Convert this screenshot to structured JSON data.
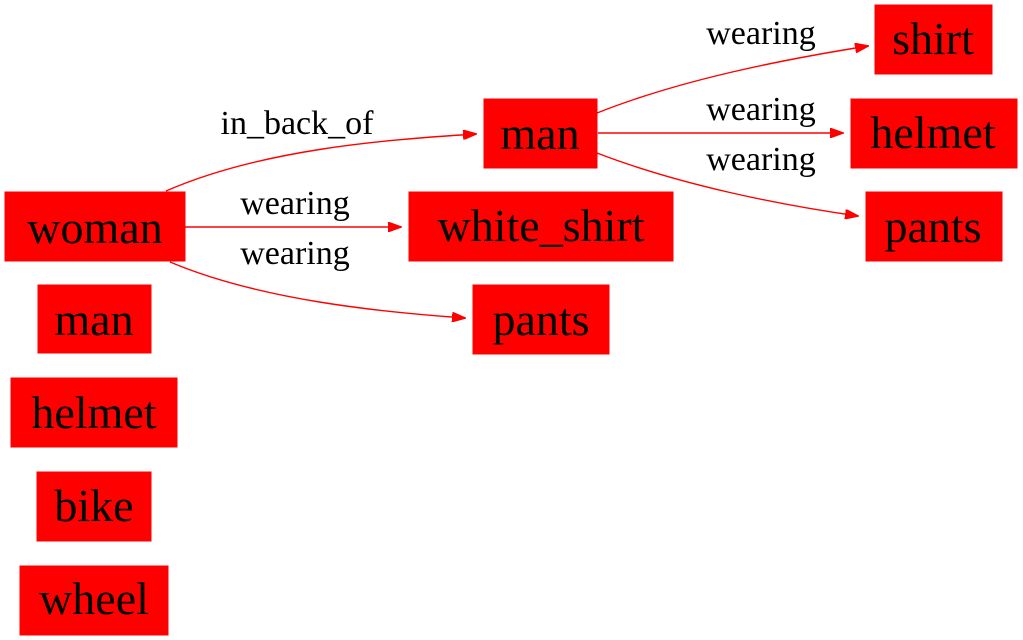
{
  "graph": {
    "node_color": "#ff0000",
    "edge_color": "#ff0000",
    "text_color": "#000000",
    "nodes": [
      {
        "id": "woman",
        "label": "woman"
      },
      {
        "id": "man_iso",
        "label": "man"
      },
      {
        "id": "helmet_iso",
        "label": "helmet"
      },
      {
        "id": "bike",
        "label": "bike"
      },
      {
        "id": "wheel",
        "label": "wheel"
      },
      {
        "id": "man_main",
        "label": "man"
      },
      {
        "id": "white_shirt",
        "label": "white_shirt"
      },
      {
        "id": "pants_w",
        "label": "pants"
      },
      {
        "id": "shirt",
        "label": "shirt"
      },
      {
        "id": "helmet_m",
        "label": "helmet"
      },
      {
        "id": "pants_m",
        "label": "pants"
      }
    ],
    "edges": [
      {
        "id": "e1",
        "from": "woman",
        "to": "man_main",
        "label": "in_back_of"
      },
      {
        "id": "e2",
        "from": "woman",
        "to": "white_shirt",
        "label": "wearing"
      },
      {
        "id": "e3",
        "from": "woman",
        "to": "pants_w",
        "label": "wearing"
      },
      {
        "id": "e4",
        "from": "man_main",
        "to": "shirt",
        "label": "wearing"
      },
      {
        "id": "e5",
        "from": "man_main",
        "to": "helmet_m",
        "label": "wearing"
      },
      {
        "id": "e6",
        "from": "man_main",
        "to": "pants_m",
        "label": "wearing"
      }
    ]
  }
}
